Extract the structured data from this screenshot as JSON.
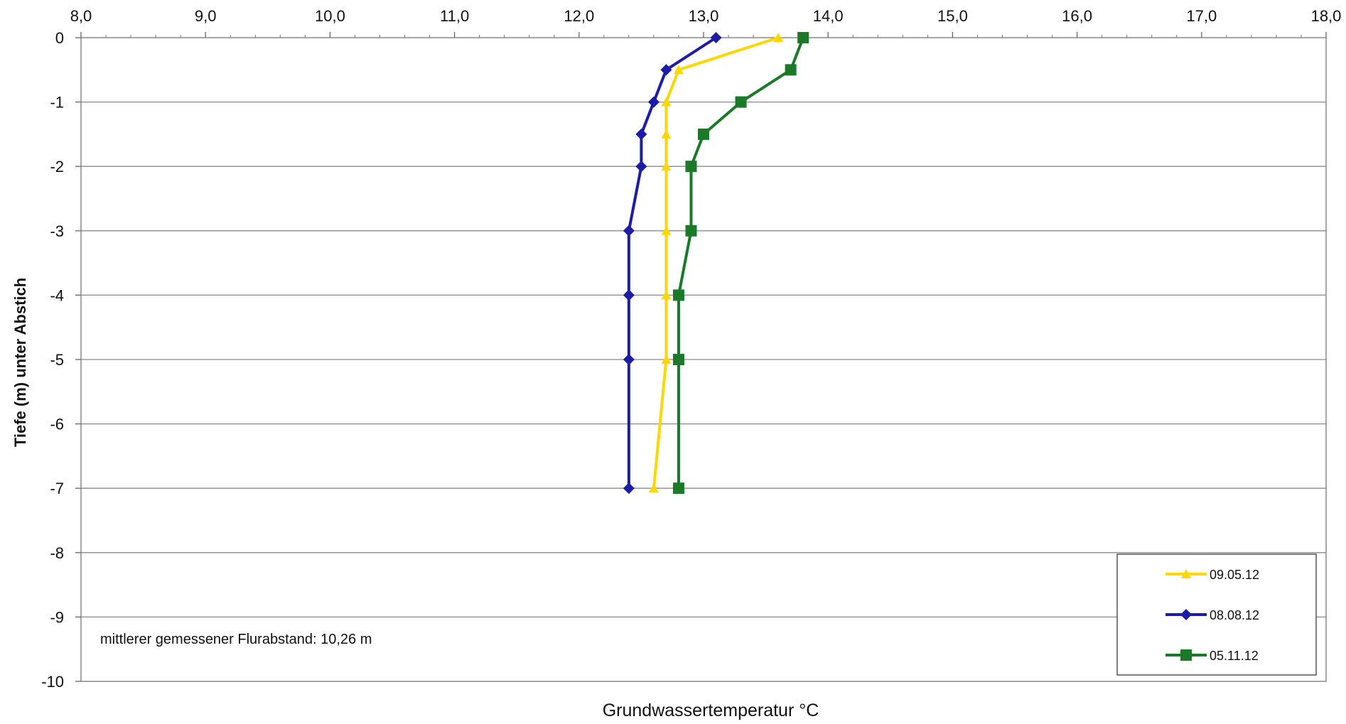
{
  "chart_data": {
    "type": "line",
    "title": "",
    "xlabel": "Grundwassertemperatur °C",
    "ylabel": "Tiefe (m) unter Abstich",
    "xlim": [
      8.0,
      18.0
    ],
    "ylim": [
      -10,
      0
    ],
    "x_ticks": [
      "8,0",
      "9,0",
      "10,0",
      "11,0",
      "12,0",
      "13,0",
      "14,0",
      "15,0",
      "16,0",
      "17,0",
      "18,0"
    ],
    "y_ticks": [
      "0",
      "-1",
      "-2",
      "-3",
      "-4",
      "-5",
      "-6",
      "-7",
      "-8",
      "-9",
      "-10"
    ],
    "x_axis_position": "top",
    "grid": "horizontal",
    "legend_position": "bottom-right",
    "annotation": "mittlerer gemessener Flurabstand: 10,26 m",
    "series": [
      {
        "name": "09.05.12",
        "color": "#ffd700",
        "marker": "triangle",
        "points": [
          {
            "x": 13.6,
            "y": 0
          },
          {
            "x": 12.8,
            "y": -0.5
          },
          {
            "x": 12.7,
            "y": -1
          },
          {
            "x": 12.7,
            "y": -1.5
          },
          {
            "x": 12.7,
            "y": -2
          },
          {
            "x": 12.7,
            "y": -3
          },
          {
            "x": 12.7,
            "y": -4
          },
          {
            "x": 12.7,
            "y": -5
          },
          {
            "x": 12.6,
            "y": -7
          }
        ]
      },
      {
        "name": "08.08.12",
        "color": "#1c1ca8",
        "marker": "diamond",
        "points": [
          {
            "x": 13.1,
            "y": 0
          },
          {
            "x": 12.7,
            "y": -0.5
          },
          {
            "x": 12.6,
            "y": -1
          },
          {
            "x": 12.5,
            "y": -1.5
          },
          {
            "x": 12.5,
            "y": -2
          },
          {
            "x": 12.4,
            "y": -3
          },
          {
            "x": 12.4,
            "y": -4
          },
          {
            "x": 12.4,
            "y": -5
          },
          {
            "x": 12.4,
            "y": -7
          }
        ]
      },
      {
        "name": "05.11.12",
        "color": "#1a7a28",
        "marker": "square",
        "points": [
          {
            "x": 13.8,
            "y": 0
          },
          {
            "x": 13.7,
            "y": -0.5
          },
          {
            "x": 13.3,
            "y": -1
          },
          {
            "x": 13.0,
            "y": -1.5
          },
          {
            "x": 12.9,
            "y": -2
          },
          {
            "x": 12.9,
            "y": -3
          },
          {
            "x": 12.8,
            "y": -4
          },
          {
            "x": 12.8,
            "y": -5
          },
          {
            "x": 12.8,
            "y": -7
          }
        ]
      }
    ]
  }
}
